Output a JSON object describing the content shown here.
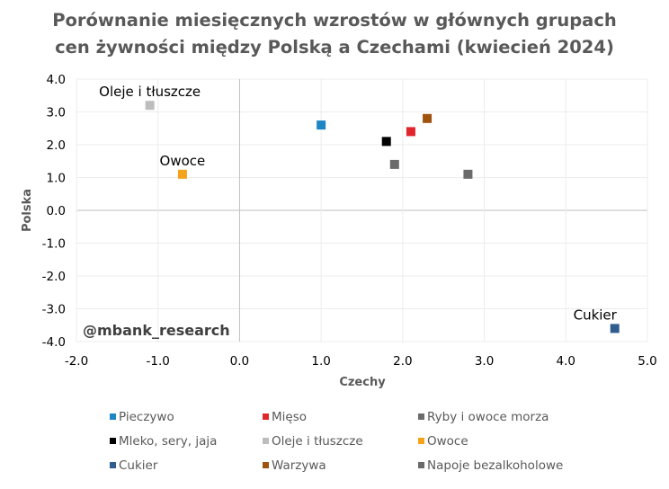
{
  "chart_data": {
    "type": "scatter",
    "title": [
      "Porównanie miesięcznych wzrostów w głównych grupach",
      "cen żywności między Polską a Czechami (kwiecień 2024)"
    ],
    "xlabel": "Czechy",
    "ylabel": "Polska",
    "xlim": [
      -2,
      5
    ],
    "ylim": [
      -4,
      4
    ],
    "xticks": [
      "-2.0",
      "-1.0",
      "0.0",
      "1.0",
      "2.0",
      "3.0",
      "4.0",
      "5.0"
    ],
    "yticks": [
      "4.0",
      "3.0",
      "2.0",
      "1.0",
      "0.0",
      "-1.0",
      "-2.0",
      "-3.0",
      "-4.0"
    ],
    "grid": true,
    "legend_position": "bottom",
    "watermark": "@mbank_research",
    "series": [
      {
        "name": "Pieczywo",
        "color": "#1f86c6",
        "x": 1.0,
        "y": 2.6
      },
      {
        "name": "Mięso",
        "color": "#e0262b",
        "x": 2.1,
        "y": 2.4
      },
      {
        "name": "Ryby i owoce morza",
        "color": "#6b6b6b",
        "x": 1.9,
        "y": 1.4
      },
      {
        "name": "Mleko, sery, jaja",
        "color": "#000000",
        "x": 1.8,
        "y": 2.1
      },
      {
        "name": "Oleje i tłuszcze",
        "color": "#bdbdbd",
        "x": -1.1,
        "y": 3.2,
        "label": "Oleje i tłuszcze"
      },
      {
        "name": "Owoce",
        "color": "#f5a31a",
        "x": -0.7,
        "y": 1.1,
        "label": "Owoce"
      },
      {
        "name": "Cukier",
        "color": "#2f5d8e",
        "x": 4.6,
        "y": -3.6,
        "label": "Cukier"
      },
      {
        "name": "Warzywa",
        "color": "#a0520f",
        "x": 2.3,
        "y": 2.8
      },
      {
        "name": "Napoje bezalkoholowe",
        "color": "#6b6b6b",
        "x": 2.8,
        "y": 1.1
      }
    ]
  }
}
